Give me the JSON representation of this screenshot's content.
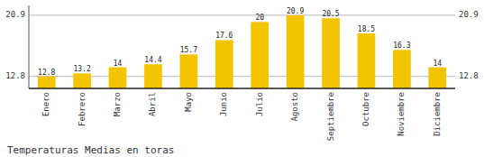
{
  "chart_data": {
    "type": "bar",
    "title": "Temperaturas Medias en toras",
    "categories": [
      "Enero",
      "Febrero",
      "Marzo",
      "Abril",
      "Mayo",
      "Junio",
      "Julio",
      "Agosto",
      "Septiembre",
      "Octubre",
      "Noviembre",
      "Diciembre"
    ],
    "values": [
      12.8,
      13.2,
      14.0,
      14.4,
      15.7,
      17.6,
      20.0,
      20.9,
      20.5,
      18.5,
      16.3,
      14.0
    ],
    "color": "#F5C400",
    "ylim": [
      11.2,
      22.2
    ],
    "yticks": [
      12.8,
      20.9
    ],
    "y2lim": [
      11.2,
      22.2
    ],
    "y2ticks": [
      12.8,
      20.9
    ],
    "grid": true,
    "data_labels": true
  }
}
